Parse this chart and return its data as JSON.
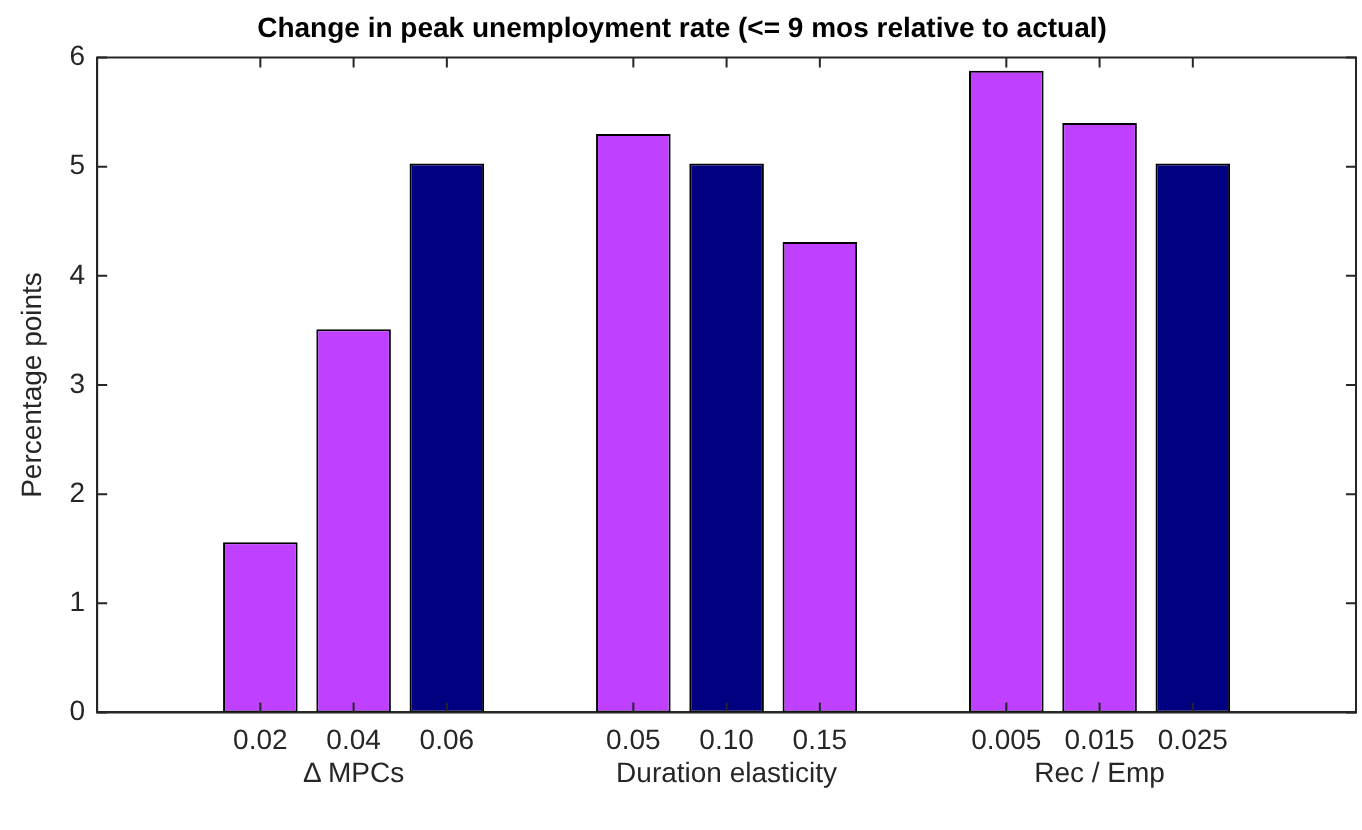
{
  "chart_data": {
    "type": "bar",
    "title": "Change in peak unemployment rate (<= 9 mos relative to actual)",
    "ylabel": "Percentage points",
    "categories": [
      "0.02",
      "0.04",
      "0.06",
      null,
      "0.05",
      "0.10",
      "0.15",
      null,
      "0.005",
      "0.015",
      "0.025"
    ],
    "values": [
      1.56,
      3.51,
      5.03,
      0,
      5.3,
      5.03,
      4.31,
      0,
      5.88,
      5.4,
      5.03
    ],
    "colors": [
      "#bf40ff",
      "#bf40ff",
      "#000080",
      "#000000",
      "#bf40ff",
      "#000080",
      "#bf40ff",
      "#000000",
      "#bf40ff",
      "#bf40ff",
      "#000080"
    ],
    "ylim": [
      0,
      6
    ],
    "yticks": [
      0,
      1,
      2,
      3,
      4,
      5,
      6
    ],
    "grid": false,
    "legend": false,
    "annotations": [
      "Δ MPCs",
      "Duration elasticity",
      "Rec / Emp"
    ]
  }
}
